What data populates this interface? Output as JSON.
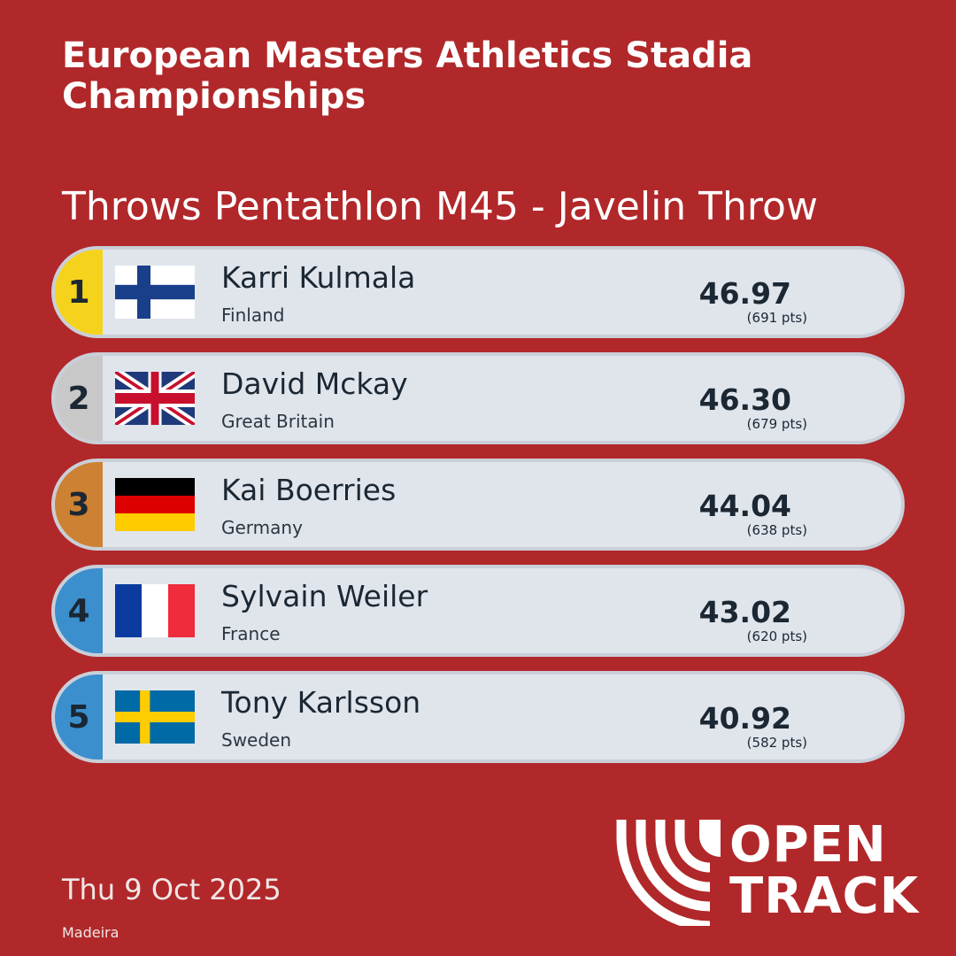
{
  "header": {
    "title": "European Masters Athletics Stadia Championships",
    "event": "Throws Pentathlon M45 - Javelin Throw"
  },
  "results": [
    {
      "position": "1",
      "name": "Karri Kulmala",
      "country": "Finland",
      "flag": "finland-flag",
      "mark": "46.97",
      "points": "(691 pts)",
      "badge_color": "#f5d31c"
    },
    {
      "position": "2",
      "name": "David Mckay",
      "country": "Great Britain",
      "flag": "great-britain-flag",
      "mark": "46.30",
      "points": "(679 pts)",
      "badge_color": "#c8c8c8"
    },
    {
      "position": "3",
      "name": "Kai Boerries",
      "country": "Germany",
      "flag": "germany-flag",
      "mark": "44.04",
      "points": "(638 pts)",
      "badge_color": "#cd8132"
    },
    {
      "position": "4",
      "name": "Sylvain Weiler",
      "country": "France",
      "flag": "france-flag",
      "mark": "43.02",
      "points": "(620 pts)",
      "badge_color": "#3b8fcd"
    },
    {
      "position": "5",
      "name": "Tony Karlsson",
      "country": "Sweden",
      "flag": "sweden-flag",
      "mark": "40.92",
      "points": "(582 pts)",
      "badge_color": "#3b8fcd"
    }
  ],
  "footer": {
    "date": "Thu 9 Oct 2025",
    "venue": "Madeira",
    "logo_line1": "OPEN",
    "logo_line2": "TRACK"
  },
  "colors": {
    "background": "#b1282a",
    "row": "#e0e5ec",
    "text": "#1b2733"
  }
}
